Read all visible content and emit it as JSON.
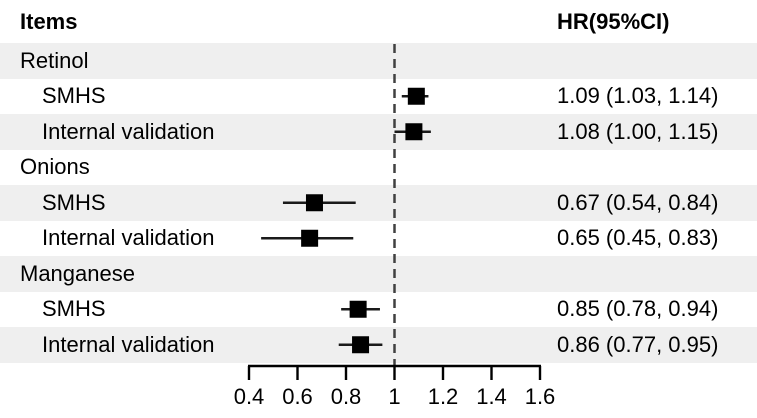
{
  "header": {
    "items_label": "Items",
    "hr_label": "HR(95%CI)"
  },
  "colors": {
    "background": "#ffffff",
    "stripe": "#efefef",
    "text": "#000000",
    "marker": "#000000",
    "ci_line": "#1a1a1a",
    "ref_line": "#404040",
    "axis_line": "#000000"
  },
  "chart_data": {
    "type": "forest",
    "title": "",
    "left_column_header": "Items",
    "right_column_header": "HR(95%CI)",
    "axis": {
      "v_min": 0.4,
      "v_max": 1.6,
      "ticks": [
        0.4,
        0.6,
        0.8,
        1.0,
        1.2,
        1.4,
        1.6
      ],
      "tick_labels": [
        "0.4",
        "0.6",
        "0.8",
        "1",
        "1.2",
        "1.4",
        "1.6"
      ],
      "ref_line": 1.0
    },
    "rows": [
      {
        "type": "group",
        "label": "Retinol",
        "shaded": true
      },
      {
        "type": "item",
        "label": "SMHS",
        "hr": 1.09,
        "lo": 1.03,
        "hi": 1.14,
        "hr_text": "1.09 (1.03, 1.14)",
        "shaded": false
      },
      {
        "type": "item",
        "label": "Internal validation",
        "hr": 1.08,
        "lo": 1.0,
        "hi": 1.15,
        "hr_text": "1.08 (1.00, 1.15)",
        "shaded": true
      },
      {
        "type": "group",
        "label": "Onions",
        "shaded": false
      },
      {
        "type": "item",
        "label": "SMHS",
        "hr": 0.67,
        "lo": 0.54,
        "hi": 0.84,
        "hr_text": "0.67 (0.54, 0.84)",
        "shaded": true
      },
      {
        "type": "item",
        "label": "Internal validation",
        "hr": 0.65,
        "lo": 0.45,
        "hi": 0.83,
        "hr_text": "0.65 (0.45, 0.83)",
        "shaded": false
      },
      {
        "type": "group",
        "label": "Manganese",
        "shaded": true
      },
      {
        "type": "item",
        "label": "SMHS",
        "hr": 0.85,
        "lo": 0.78,
        "hi": 0.94,
        "hr_text": "0.85 (0.78, 0.94)",
        "shaded": false
      },
      {
        "type": "item",
        "label": "Internal validation",
        "hr": 0.86,
        "lo": 0.77,
        "hi": 0.95,
        "hr_text": "0.86 (0.77, 0.95)",
        "shaded": true
      }
    ]
  }
}
